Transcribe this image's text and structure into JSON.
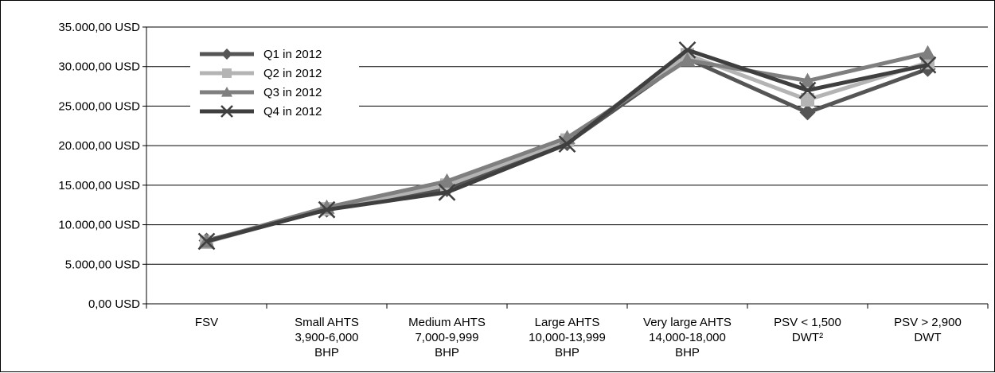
{
  "chart_data": {
    "type": "line",
    "title": "",
    "xlabel": "",
    "ylabel": "",
    "ylim": [
      0,
      35000
    ],
    "yticks": [
      0,
      5000,
      10000,
      15000,
      20000,
      25000,
      30000,
      35000
    ],
    "ytick_labels": [
      "0,00 USD",
      "5.000,00 USD",
      "10.000,00 USD",
      "15.000,00 USD",
      "20.000,00 USD",
      "25.000,00 USD",
      "30.000,00 USD",
      "35.000,00 USD"
    ],
    "grid": true,
    "legend_position": "top-left",
    "categories": [
      [
        "FSV"
      ],
      [
        "Small AHTS",
        "3,900-6,000",
        "BHP"
      ],
      [
        "Medium  AHTS",
        "7,000-9,999",
        "BHP"
      ],
      [
        "Large  AHTS",
        "10,000-13,999",
        "BHP"
      ],
      [
        "Very large AHTS",
        "14,000-18,000",
        "BHP"
      ],
      [
        "PSV < 1,500",
        "DWT²"
      ],
      [
        "PSV > 2,900",
        "DWT"
      ]
    ],
    "series": [
      {
        "name": "Q1 in 2012",
        "marker": "diamond",
        "color": "#555555",
        "values": [
          8000,
          11900,
          14500,
          20300,
          31000,
          24200,
          29700
        ]
      },
      {
        "name": "Q2 in 2012",
        "marker": "square",
        "color": "#b4b4b4",
        "values": [
          7800,
          12000,
          15000,
          20700,
          31500,
          25800,
          30500
        ]
      },
      {
        "name": "Q3 in 2012",
        "marker": "triangle",
        "color": "#7f7f7f",
        "values": [
          7900,
          12200,
          15500,
          21000,
          30800,
          28200,
          31700
        ]
      },
      {
        "name": "Q4 in 2012",
        "marker": "x",
        "color": "#3f3f3f",
        "values": [
          7900,
          11900,
          14100,
          20200,
          32100,
          27000,
          30200
        ]
      }
    ]
  }
}
